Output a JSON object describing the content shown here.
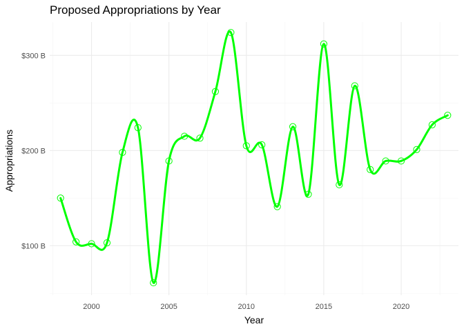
{
  "chart_data": {
    "type": "line",
    "title": "Proposed Appropriations by Year",
    "xlabel": "Year",
    "ylabel": "Appropriations",
    "xlim": [
      1997.3,
      2023.7
    ],
    "ylim": [
      48,
      335
    ],
    "x_ticks": [
      2000,
      2005,
      2010,
      2015,
      2020
    ],
    "x_tick_labels": [
      "2000",
      "2005",
      "2010",
      "2015",
      "2020"
    ],
    "x_minor_ticks": [
      1997.5,
      2002.5,
      2007.5,
      2012.5,
      2017.5,
      2022.5
    ],
    "y_ticks": [
      100,
      200,
      300
    ],
    "y_tick_labels": [
      "$100 B",
      "$200 B",
      "$300 B"
    ],
    "y_minor_ticks": [
      50,
      150,
      250
    ],
    "grid": true,
    "color": "#00ff00",
    "series": [
      {
        "x": [
          1998,
          1999,
          2000,
          2001,
          2002,
          2003,
          2004,
          2005,
          2006,
          2007,
          2008,
          2009,
          2010,
          2011,
          2012,
          2013,
          2014,
          2015,
          2016,
          2017,
          2018,
          2019,
          2020,
          2021,
          2022,
          2023
        ],
        "values": [
          150,
          104,
          102,
          103,
          198,
          224,
          61,
          189,
          215,
          213,
          262,
          324,
          205,
          206,
          141,
          225,
          154,
          312,
          164,
          268,
          180,
          189,
          189,
          201,
          227,
          237
        ]
      }
    ]
  }
}
